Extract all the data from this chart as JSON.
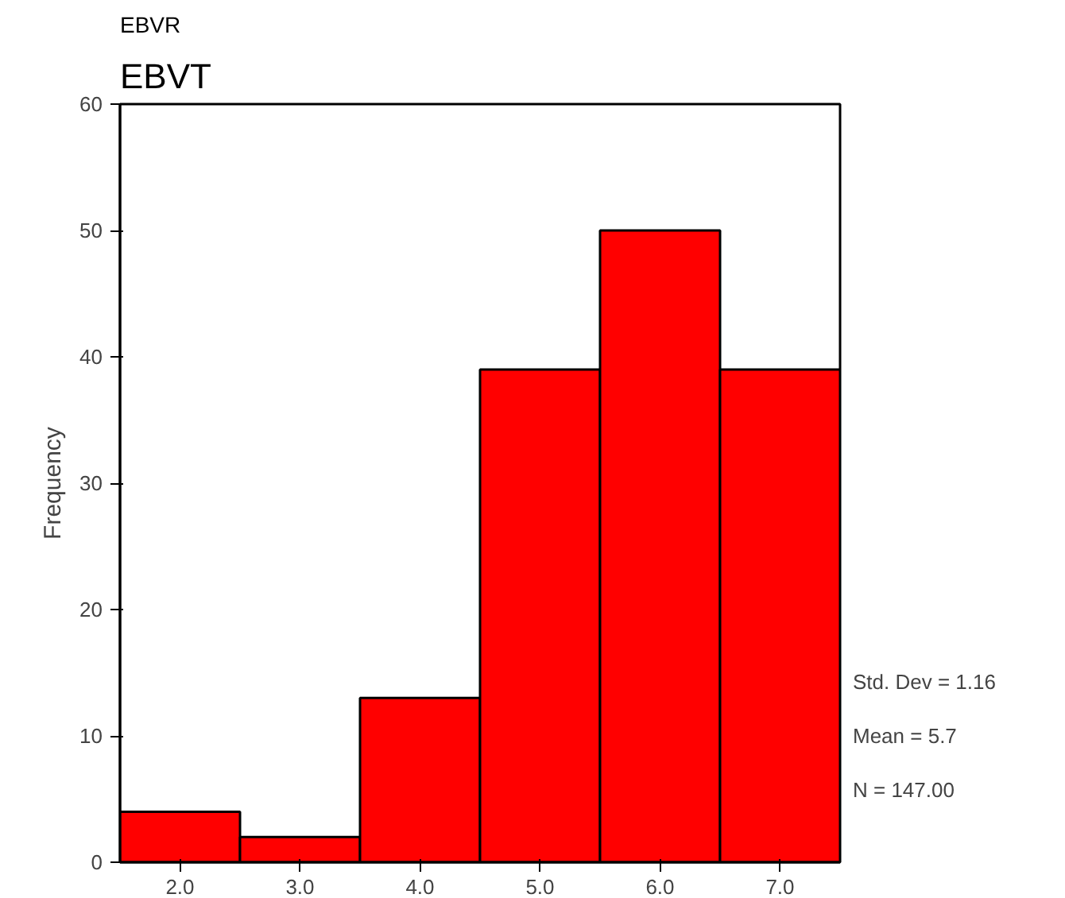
{
  "chart_data": {
    "type": "histogram",
    "subtitle": "EBVR",
    "title": "EBVT",
    "ylabel": "Frequency",
    "bins": [
      1.5,
      2.5,
      3.5,
      4.5,
      5.5,
      6.5,
      7.5
    ],
    "values": [
      4,
      2,
      13,
      39,
      50,
      39
    ],
    "color": "#ff0000",
    "xlim": [
      1.5,
      7.5
    ],
    "xticks": [
      {
        "value": 2,
        "label": "2.0"
      },
      {
        "value": 3,
        "label": "3.0"
      },
      {
        "value": 4,
        "label": "4.0"
      },
      {
        "value": 5,
        "label": "5.0"
      },
      {
        "value": 6,
        "label": "6.0"
      },
      {
        "value": 7,
        "label": "7.0"
      }
    ],
    "ylim": [
      0,
      60
    ],
    "yticks": [
      0,
      10,
      20,
      30,
      40,
      50,
      60
    ],
    "grid": false,
    "annotations": [
      "Std. Dev = 1.16",
      "Mean = 5.7",
      "N = 147.00"
    ]
  }
}
